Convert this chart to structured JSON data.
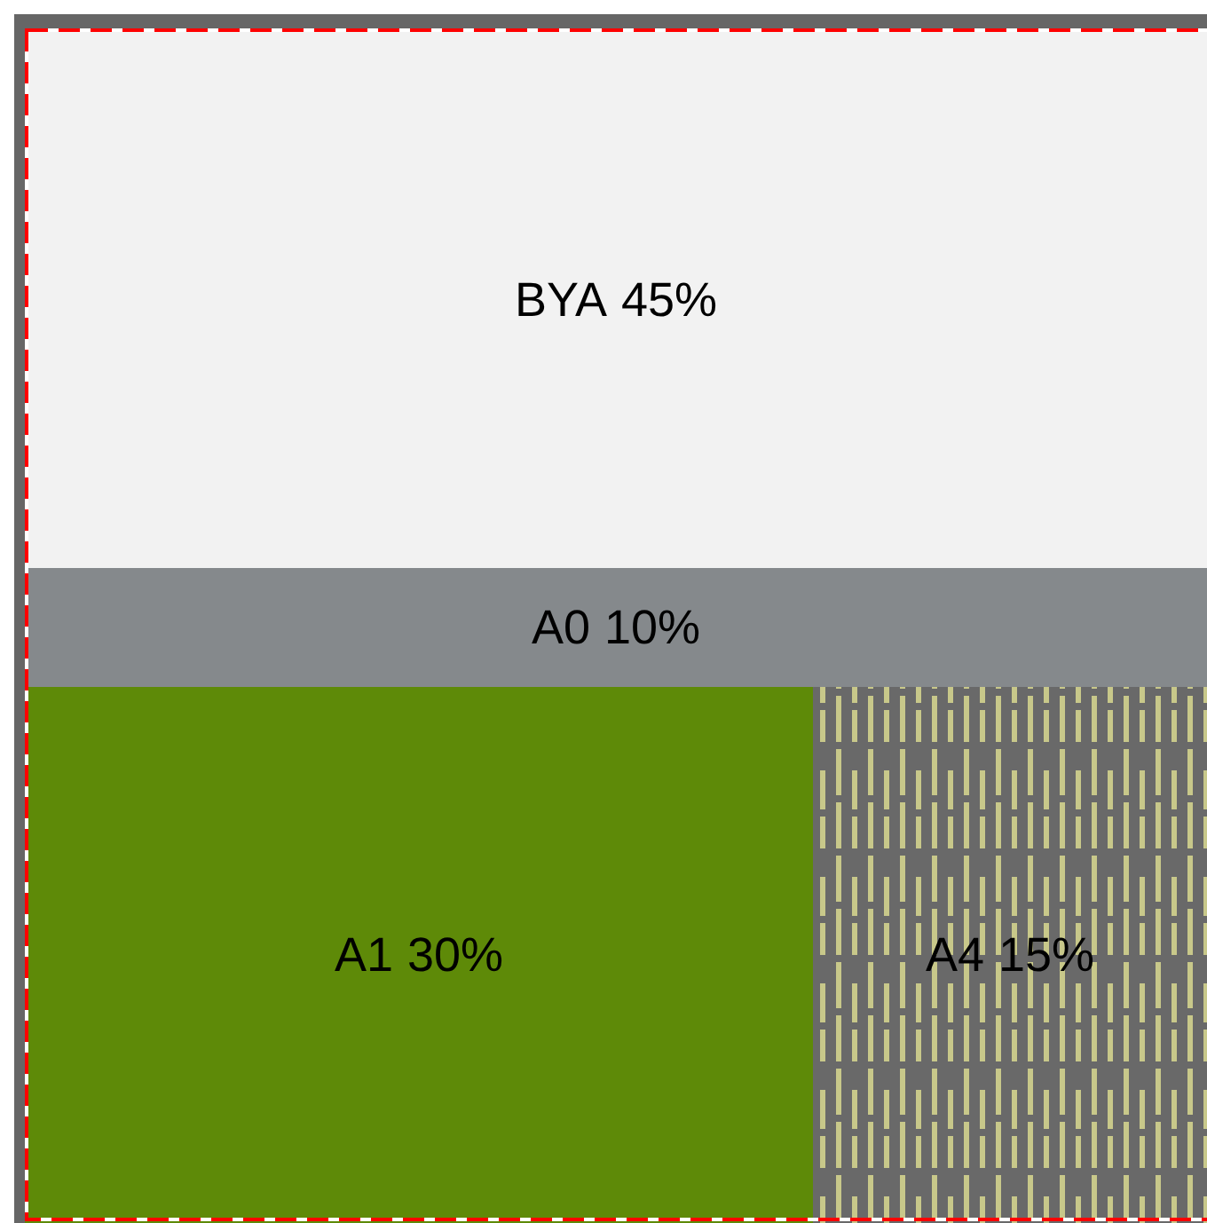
{
  "chart_data": {
    "type": "other",
    "categories": [
      "BYA",
      "A0",
      "A1",
      "A4"
    ],
    "values": [
      45,
      10,
      30,
      15
    ],
    "value_labels": [
      "45%",
      "10%",
      "30%",
      "15%"
    ],
    "colors": [
      "#f2f2f2",
      "#85898c",
      "#5e8a08",
      "#696969"
    ]
  }
}
